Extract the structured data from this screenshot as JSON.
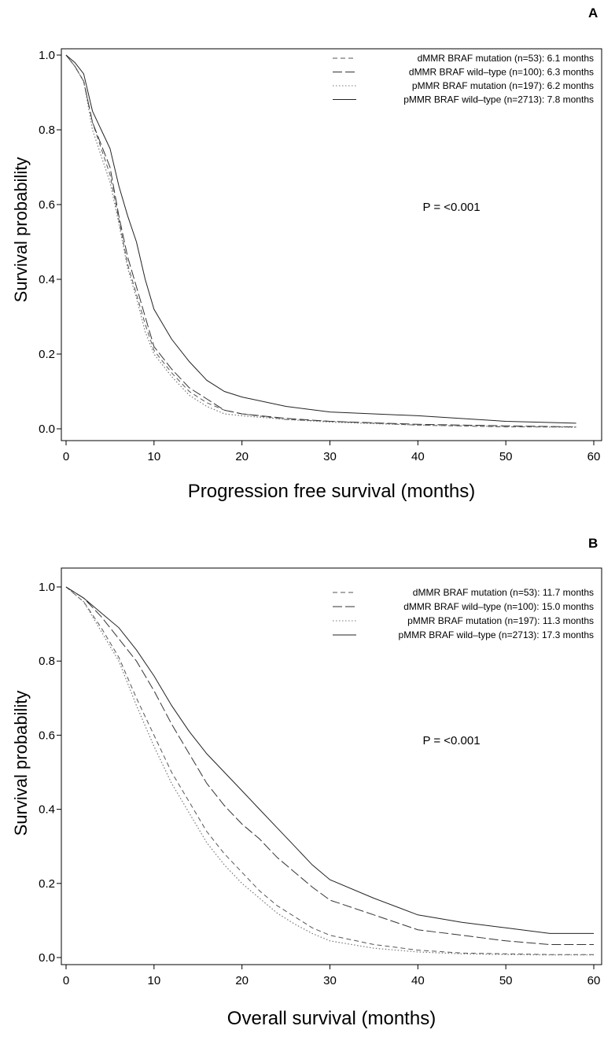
{
  "chart_data": [
    {
      "type": "line",
      "panel_label": "A",
      "xlabel": "Progression free survival (months)",
      "ylabel": "Survival probability",
      "xlim": [
        0,
        60
      ],
      "ylim": [
        0,
        1
      ],
      "xticks": [
        "0",
        "10",
        "20",
        "30",
        "40",
        "50",
        "60"
      ],
      "yticks": [
        "0.0",
        "0.2",
        "0.4",
        "0.6",
        "0.8",
        "1.0"
      ],
      "annotation": "P = <0.001",
      "legend_position": "top-right",
      "series": [
        {
          "name": "dMMR BRAF mutation (n=53):   6.1 months",
          "style": "dashed",
          "color": "#555555",
          "x": [
            0,
            1,
            2,
            3,
            4,
            5,
            6,
            7,
            8,
            9,
            10,
            12,
            14,
            16,
            18,
            20,
            25,
            30,
            40,
            50,
            58
          ],
          "y": [
            1.0,
            0.97,
            0.93,
            0.82,
            0.75,
            0.68,
            0.56,
            0.44,
            0.36,
            0.28,
            0.21,
            0.15,
            0.1,
            0.07,
            0.05,
            0.04,
            0.025,
            0.02,
            0.01,
            0.005,
            0.005
          ]
        },
        {
          "name": "dMMR BRAF wild–type (n=100):  6.3 months",
          "style": "longdash",
          "color": "#333333",
          "x": [
            0,
            1,
            2,
            3,
            4,
            5,
            6,
            7,
            8,
            9,
            10,
            12,
            14,
            16,
            18,
            20,
            25,
            30,
            40,
            50,
            58
          ],
          "y": [
            1.0,
            0.97,
            0.93,
            0.82,
            0.76,
            0.7,
            0.57,
            0.46,
            0.38,
            0.3,
            0.22,
            0.16,
            0.11,
            0.08,
            0.05,
            0.04,
            0.028,
            0.02,
            0.012,
            0.008,
            0.005
          ]
        },
        {
          "name": "pMMR BRAF mutation (n=197):  6.2 months",
          "style": "dotted",
          "color": "#777777",
          "x": [
            0,
            1,
            2,
            3,
            4,
            5,
            6,
            7,
            8,
            9,
            10,
            12,
            14,
            16,
            18,
            20,
            25,
            30,
            40,
            50,
            58
          ],
          "y": [
            1.0,
            0.97,
            0.93,
            0.8,
            0.73,
            0.66,
            0.55,
            0.43,
            0.35,
            0.26,
            0.2,
            0.14,
            0.09,
            0.06,
            0.04,
            0.035,
            0.025,
            0.018,
            0.01,
            0.006,
            0.004
          ]
        },
        {
          "name": "pMMR BRAF wild–type (n=2713): 7.8 months",
          "style": "solid",
          "color": "#222222",
          "x": [
            0,
            1,
            2,
            3,
            4,
            5,
            6,
            7,
            8,
            9,
            10,
            12,
            14,
            16,
            18,
            20,
            25,
            30,
            40,
            50,
            58
          ],
          "y": [
            1.0,
            0.98,
            0.95,
            0.85,
            0.8,
            0.75,
            0.65,
            0.57,
            0.5,
            0.4,
            0.32,
            0.24,
            0.18,
            0.13,
            0.1,
            0.085,
            0.06,
            0.045,
            0.035,
            0.02,
            0.015
          ]
        }
      ]
    },
    {
      "type": "line",
      "panel_label": "B",
      "xlabel": "Overall survival (months)",
      "ylabel": "Survival probability",
      "xlim": [
        0,
        60
      ],
      "ylim": [
        0,
        1
      ],
      "xticks": [
        "0",
        "10",
        "20",
        "30",
        "40",
        "50",
        "60"
      ],
      "yticks": [
        "0.0",
        "0.2",
        "0.4",
        "0.6",
        "0.8",
        "1.0"
      ],
      "annotation": "P = <0.001",
      "legend_position": "top-right",
      "series": [
        {
          "name": "dMMR BRAF mutation (n=53):   11.7 months",
          "style": "dashed",
          "color": "#555555",
          "x": [
            0,
            2,
            4,
            6,
            8,
            10,
            12,
            14,
            16,
            18,
            20,
            22,
            24,
            26,
            28,
            30,
            35,
            40,
            45,
            50,
            55,
            60
          ],
          "y": [
            1.0,
            0.96,
            0.89,
            0.81,
            0.7,
            0.6,
            0.5,
            0.42,
            0.34,
            0.28,
            0.23,
            0.18,
            0.14,
            0.11,
            0.08,
            0.06,
            0.035,
            0.02,
            0.012,
            0.01,
            0.008,
            0.008
          ]
        },
        {
          "name": "dMMR BRAF wild–type (n=100):  15.0 months",
          "style": "longdash",
          "color": "#333333",
          "x": [
            0,
            2,
            4,
            6,
            8,
            10,
            12,
            14,
            16,
            18,
            20,
            22,
            24,
            26,
            28,
            30,
            35,
            40,
            45,
            50,
            55,
            60
          ],
          "y": [
            1.0,
            0.97,
            0.92,
            0.86,
            0.8,
            0.72,
            0.63,
            0.55,
            0.47,
            0.41,
            0.36,
            0.32,
            0.27,
            0.23,
            0.19,
            0.155,
            0.115,
            0.075,
            0.06,
            0.045,
            0.035,
            0.035
          ]
        },
        {
          "name": "pMMR BRAF mutation (n=197):  11.3 months",
          "style": "dotted",
          "color": "#777777",
          "x": [
            0,
            2,
            4,
            6,
            8,
            10,
            12,
            14,
            16,
            18,
            20,
            22,
            24,
            26,
            28,
            30,
            35,
            40,
            45,
            50,
            55,
            60
          ],
          "y": [
            1.0,
            0.96,
            0.88,
            0.8,
            0.68,
            0.57,
            0.47,
            0.39,
            0.31,
            0.25,
            0.2,
            0.16,
            0.12,
            0.09,
            0.065,
            0.045,
            0.025,
            0.015,
            0.01,
            0.008,
            0.007,
            0.007
          ]
        },
        {
          "name": "pMMR BRAF wild–type (n=2713): 17.3 months",
          "style": "solid",
          "color": "#222222",
          "x": [
            0,
            2,
            4,
            6,
            8,
            10,
            12,
            14,
            16,
            18,
            20,
            22,
            24,
            26,
            28,
            30,
            35,
            40,
            45,
            50,
            55,
            60
          ],
          "y": [
            1.0,
            0.97,
            0.93,
            0.89,
            0.83,
            0.76,
            0.68,
            0.61,
            0.55,
            0.5,
            0.45,
            0.4,
            0.35,
            0.3,
            0.25,
            0.21,
            0.16,
            0.115,
            0.095,
            0.08,
            0.065,
            0.065
          ]
        }
      ]
    }
  ]
}
